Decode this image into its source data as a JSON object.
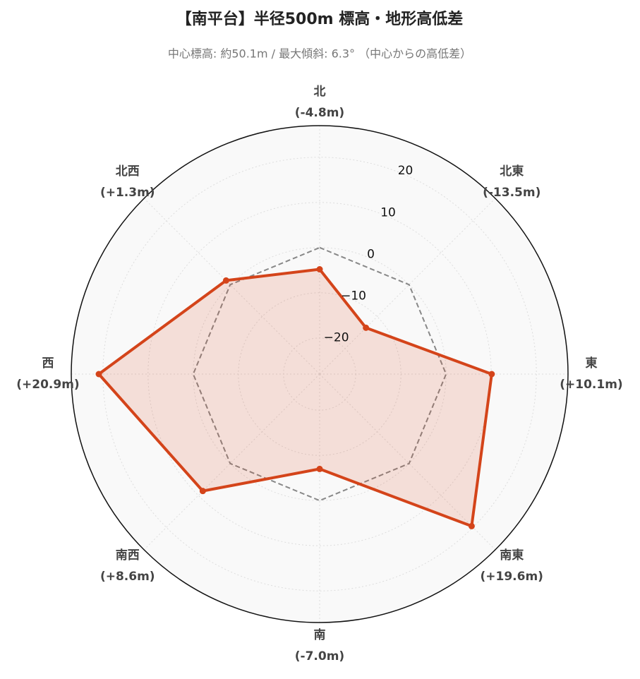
{
  "chart_data": {
    "type": "radar",
    "title": "【南平台】半径500m 標高・地形高低差",
    "subtitle": "中心標高: 約50.1m / 最大傾斜: 6.3° （中心からの高低差）",
    "categories": [
      "北",
      "北東",
      "東",
      "南東",
      "南",
      "南西",
      "西",
      "北西"
    ],
    "values": [
      -4.8,
      -13.5,
      10.1,
      19.6,
      -7.0,
      8.6,
      20.9,
      1.3
    ],
    "value_labels": [
      "(-4.8m)",
      "(-13.5m)",
      "(+10.1m)",
      "(+19.6m)",
      "(-7.0m)",
      "(+8.6m)",
      "(+20.9m)",
      "(+1.3m)"
    ],
    "color": "#d4441a",
    "ylim": [
      -28,
      27
    ],
    "yticks": [
      {
        "value": -20,
        "label": "−20"
      },
      {
        "value": -10,
        "label": "−10"
      },
      0,
      10,
      20
    ],
    "grid": true
  }
}
